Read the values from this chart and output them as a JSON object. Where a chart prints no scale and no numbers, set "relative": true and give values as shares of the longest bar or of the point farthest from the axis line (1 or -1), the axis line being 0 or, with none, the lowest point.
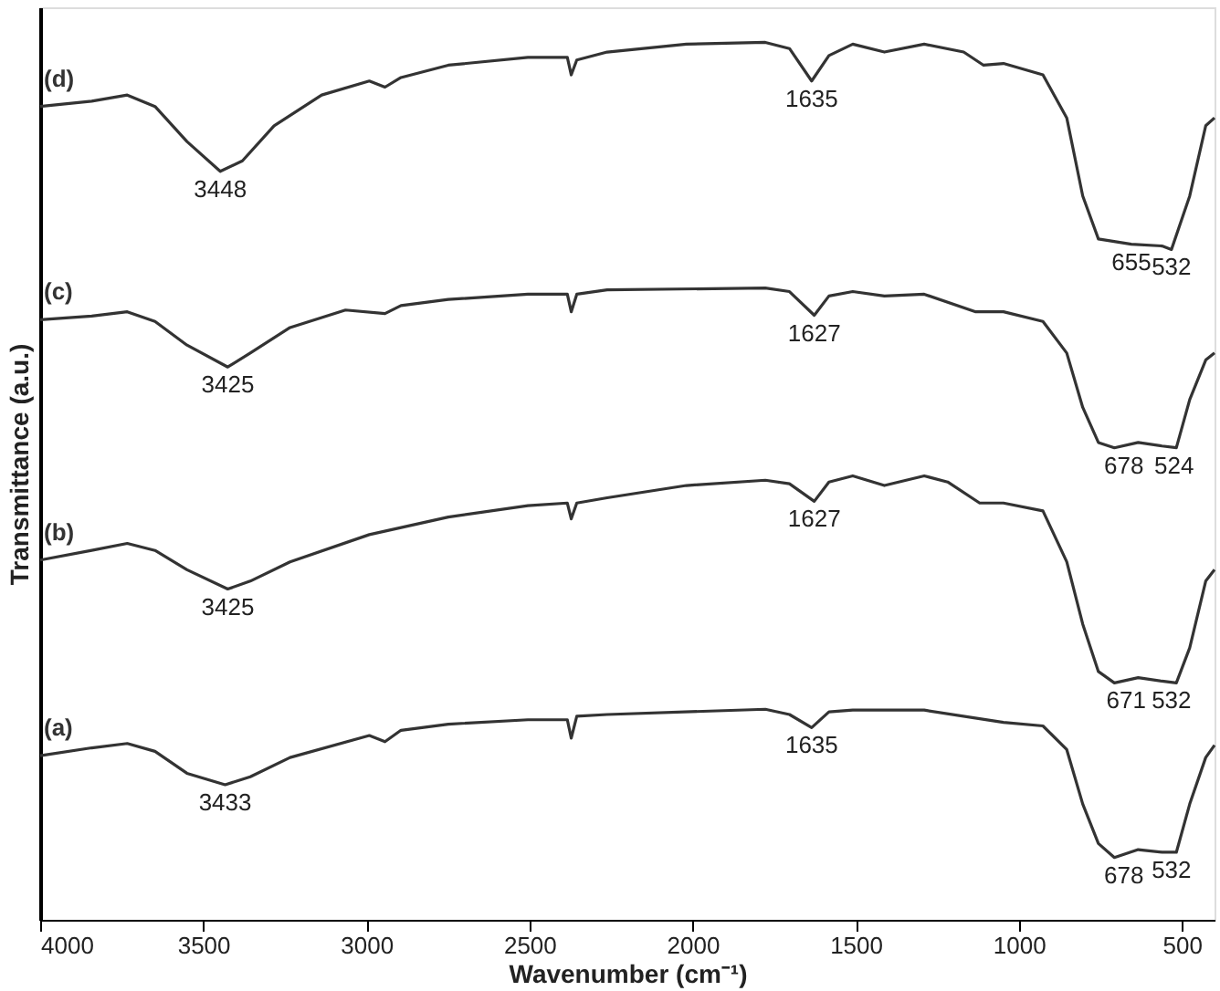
{
  "chart_data": {
    "type": "line",
    "relative": true,
    "xlabel": "Wavenumber (cm⁻¹)",
    "ylabel": "Transmittance (a.u.)",
    "xlim": [
      4000,
      400
    ],
    "xticks": [
      4000,
      3500,
      3000,
      2500,
      2000,
      1500,
      1000,
      500
    ],
    "tick_labels": "x",
    "grid": false,
    "marker": "none",
    "line_style": "solid",
    "series": [
      {
        "name": "(a)",
        "color": "#333333",
        "x": [
          4000,
          3842,
          3733,
          3648,
          3550,
          3433,
          3356,
          3234,
          2991,
          2943,
          2894,
          2749,
          2505,
          2384,
          2372,
          2355,
          2262,
          1777,
          1703,
          1635,
          1582,
          1509,
          1290,
          1047,
          926,
          853,
          804,
          756,
          707,
          634,
          561,
          517,
          476,
          427,
          400
        ],
        "values": [
          0.187,
          0.196,
          0.201,
          0.192,
          0.167,
          0.154,
          0.163,
          0.185,
          0.21,
          0.203,
          0.216,
          0.223,
          0.228,
          0.228,
          0.207,
          0.232,
          0.234,
          0.24,
          0.234,
          0.219,
          0.237,
          0.239,
          0.239,
          0.225,
          0.221,
          0.194,
          0.132,
          0.087,
          0.071,
          0.08,
          0.077,
          0.077,
          0.132,
          0.185,
          0.199
        ]
      },
      {
        "name": "(b)",
        "color": "#333333",
        "x": [
          4000,
          3842,
          3733,
          3648,
          3550,
          3425,
          3356,
          3234,
          2991,
          2749,
          2505,
          2384,
          2372,
          2355,
          2262,
          2019,
          1777,
          1703,
          1627,
          1582,
          1509,
          1412,
          1290,
          1218,
          1120,
          1047,
          926,
          853,
          804,
          756,
          707,
          634,
          561,
          517,
          476,
          427,
          400
        ],
        "values": [
          0.41,
          0.421,
          0.429,
          0.421,
          0.399,
          0.377,
          0.386,
          0.408,
          0.439,
          0.459,
          0.472,
          0.475,
          0.457,
          0.475,
          0.481,
          0.495,
          0.501,
          0.497,
          0.477,
          0.499,
          0.506,
          0.495,
          0.506,
          0.499,
          0.475,
          0.475,
          0.466,
          0.408,
          0.337,
          0.283,
          0.27,
          0.276,
          0.272,
          0.27,
          0.31,
          0.386,
          0.399
        ]
      },
      {
        "name": "(c)",
        "color": "#333333",
        "x": [
          4000,
          3842,
          3733,
          3648,
          3550,
          3425,
          3356,
          3234,
          3064,
          2943,
          2894,
          2749,
          2505,
          2384,
          2372,
          2355,
          2262,
          1777,
          1703,
          1627,
          1582,
          1509,
          1412,
          1290,
          1132,
          1047,
          926,
          853,
          804,
          756,
          707,
          634,
          561,
          517,
          476,
          427,
          400
        ],
        "values": [
          0.684,
          0.688,
          0.693,
          0.682,
          0.655,
          0.63,
          0.646,
          0.675,
          0.695,
          0.691,
          0.7,
          0.707,
          0.713,
          0.713,
          0.693,
          0.713,
          0.718,
          0.72,
          0.716,
          0.689,
          0.711,
          0.716,
          0.711,
          0.713,
          0.693,
          0.693,
          0.682,
          0.646,
          0.584,
          0.544,
          0.538,
          0.544,
          0.54,
          0.538,
          0.593,
          0.638,
          0.646
        ]
      },
      {
        "name": "(d)",
        "color": "#333333",
        "x": [
          4000,
          3842,
          3733,
          3648,
          3550,
          3448,
          3380,
          3283,
          3137,
          2991,
          2943,
          2894,
          2749,
          2505,
          2384,
          2372,
          2355,
          2262,
          2019,
          1777,
          1703,
          1635,
          1582,
          1509,
          1412,
          1290,
          1169,
          1108,
          1047,
          926,
          853,
          804,
          756,
          655,
          561,
          532,
          476,
          427,
          400
        ],
        "values": [
          0.927,
          0.933,
          0.94,
          0.927,
          0.887,
          0.853,
          0.865,
          0.905,
          0.94,
          0.956,
          0.949,
          0.96,
          0.974,
          0.983,
          0.983,
          0.963,
          0.98,
          0.989,
          0.998,
          1.0,
          0.993,
          0.956,
          0.985,
          0.998,
          0.989,
          0.998,
          0.989,
          0.974,
          0.976,
          0.963,
          0.914,
          0.825,
          0.776,
          0.77,
          0.768,
          0.764,
          0.825,
          0.905,
          0.914
        ]
      }
    ],
    "annotations": [
      {
        "text": "3433",
        "x": 3433,
        "y": 0.154
      },
      {
        "text": "1635",
        "x": 1635,
        "y": 0.219
      },
      {
        "text": "678",
        "x": 678,
        "y": 0.071
      },
      {
        "text": "532",
        "x": 532,
        "y": 0.077
      },
      {
        "text": "3425",
        "x": 3425,
        "y": 0.377
      },
      {
        "text": "1627",
        "x": 1627,
        "y": 0.477
      },
      {
        "text": "671",
        "x": 671,
        "y": 0.27
      },
      {
        "text": "532",
        "x": 532,
        "y": 0.27
      },
      {
        "text": "3425",
        "x": 3425,
        "y": 0.63
      },
      {
        "text": "1627",
        "x": 1627,
        "y": 0.689
      },
      {
        "text": "678",
        "x": 678,
        "y": 0.538
      },
      {
        "text": "524",
        "x": 524,
        "y": 0.538
      },
      {
        "text": "3448",
        "x": 3448,
        "y": 0.853
      },
      {
        "text": "1635",
        "x": 1635,
        "y": 0.956
      },
      {
        "text": "655",
        "x": 655,
        "y": 0.77
      },
      {
        "text": "532",
        "x": 532,
        "y": 0.764
      }
    ]
  }
}
